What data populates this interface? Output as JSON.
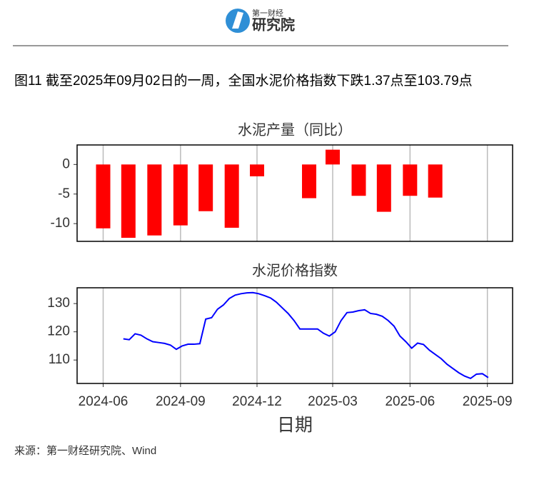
{
  "header": {
    "logo_main": "第一财经",
    "logo_sub": "研究院"
  },
  "figure_title": "图11  截至2025年09月02日的一周，全国水泥价格指数下跌1.37点至103.79点",
  "source": "来源：第一财经研究院、Wind",
  "chart_data": [
    {
      "type": "bar",
      "title": "水泥产量（同比）",
      "color": "#ff0000",
      "x": [
        "2024-06",
        "2024-07",
        "2024-08",
        "2024-09",
        "2024-10",
        "2024-11",
        "2024-12",
        "2025-01",
        "2025-02",
        "2025-03",
        "2025-04",
        "2025-05",
        "2025-06",
        "2025-07"
      ],
      "values": [
        -10.8,
        -12.4,
        -12.0,
        -10.3,
        -7.9,
        -10.7,
        -2.0,
        null,
        -5.7,
        2.5,
        -5.3,
        -8.0,
        -5.3,
        -5.6
      ],
      "xlim": [
        "2024-05",
        "2025-10"
      ],
      "xticks": [
        "2024-06",
        "2024-09",
        "2024-12",
        "2025-03",
        "2025-06",
        "2025-09"
      ],
      "ylim": [
        -13,
        3.3
      ],
      "yticks": [
        -10,
        -5,
        0
      ],
      "grid": true
    },
    {
      "type": "line",
      "title": "水泥价格指数",
      "xlabel": "日期",
      "color": "#0000ff",
      "x": [
        "2024-06-25",
        "2024-07-02",
        "2024-07-09",
        "2024-07-16",
        "2024-07-23",
        "2024-07-30",
        "2024-08-06",
        "2024-08-13",
        "2024-08-20",
        "2024-08-27",
        "2024-09-03",
        "2024-09-10",
        "2024-09-17",
        "2024-09-24",
        "2024-10-01",
        "2024-10-08",
        "2024-10-15",
        "2024-10-22",
        "2024-10-29",
        "2024-11-05",
        "2024-11-12",
        "2024-11-19",
        "2024-11-26",
        "2024-12-03",
        "2024-12-10",
        "2024-12-17",
        "2024-12-24",
        "2024-12-31",
        "2025-01-07",
        "2025-01-14",
        "2025-01-21",
        "2025-01-28",
        "2025-02-04",
        "2025-02-11",
        "2025-02-18",
        "2025-02-25",
        "2025-03-04",
        "2025-03-11",
        "2025-03-18",
        "2025-03-25",
        "2025-04-01",
        "2025-04-08",
        "2025-04-15",
        "2025-04-22",
        "2025-04-29",
        "2025-05-06",
        "2025-05-13",
        "2025-05-20",
        "2025-05-27",
        "2025-06-03",
        "2025-06-10",
        "2025-06-17",
        "2025-06-24",
        "2025-07-01",
        "2025-07-08",
        "2025-07-15",
        "2025-07-22",
        "2025-07-29",
        "2025-08-05",
        "2025-08-12",
        "2025-08-19",
        "2025-08-26",
        "2025-09-02"
      ],
      "values": [
        117.5,
        117.2,
        119.3,
        118.8,
        117.5,
        116.5,
        116.2,
        115.9,
        115.3,
        113.8,
        115.0,
        115.6,
        115.6,
        115.8,
        124.5,
        125.0,
        128.0,
        129.5,
        131.8,
        133.0,
        133.5,
        133.8,
        133.9,
        133.5,
        132.8,
        132.0,
        130.5,
        128.5,
        126.5,
        124.0,
        121.0,
        121.0,
        121.0,
        121.0,
        119.5,
        118.5,
        120.0,
        124.0,
        126.8,
        127.0,
        127.5,
        127.8,
        126.5,
        126.2,
        125.5,
        124.0,
        122.0,
        118.5,
        116.5,
        114.2,
        116.0,
        115.5,
        113.5,
        112.0,
        110.5,
        108.5,
        107.0,
        105.5,
        104.3,
        103.5,
        105.0,
        105.16,
        103.79
      ],
      "xlim": [
        "2024-05",
        "2025-10"
      ],
      "xticks": [
        "2024-06",
        "2024-09",
        "2024-12",
        "2025-03",
        "2025-06",
        "2025-09"
      ],
      "ylim": [
        101.7,
        135.6
      ],
      "yticks": [
        110,
        120,
        130
      ],
      "grid": true
    }
  ]
}
